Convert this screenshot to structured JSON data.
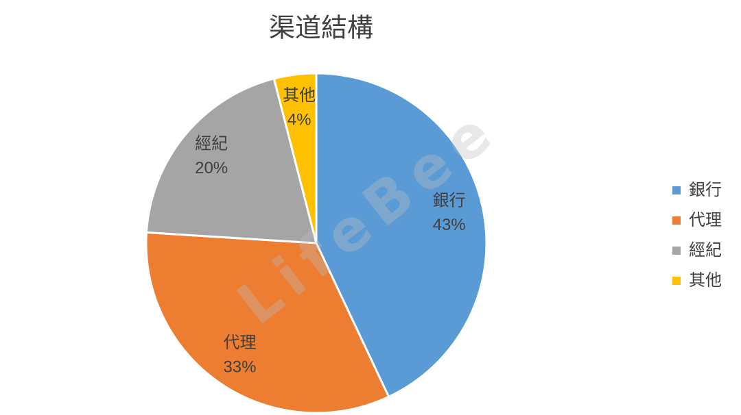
{
  "chart_data": {
    "type": "pie",
    "title": "渠道結構",
    "categories": [
      "銀行",
      "代理",
      "經紀",
      "其他"
    ],
    "values": [
      43,
      33,
      20,
      4
    ],
    "value_labels": [
      "43%",
      "33%",
      "20%",
      "4%"
    ],
    "colors": [
      "#5b9bd5",
      "#ed7d31",
      "#a5a5a5",
      "#ffc000"
    ],
    "legend": "right",
    "watermark": "LifeBee"
  }
}
